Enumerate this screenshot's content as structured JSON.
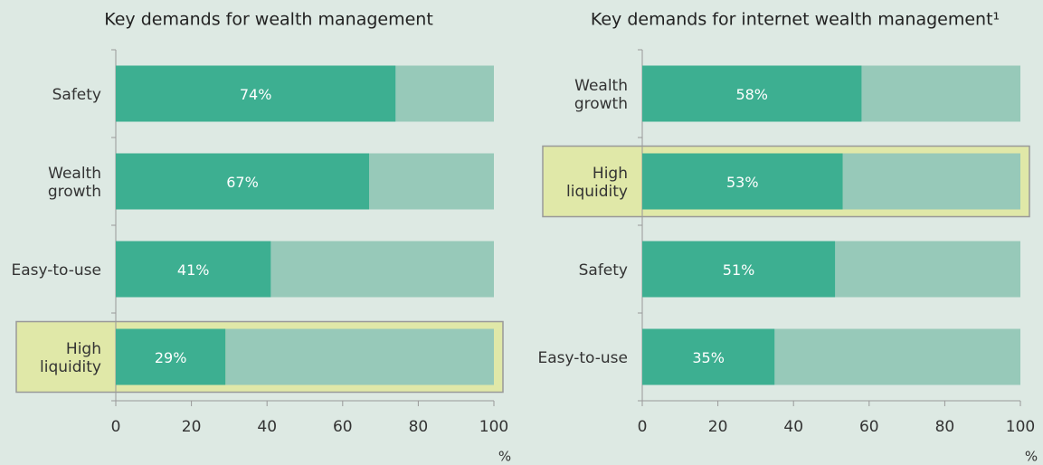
{
  "chart_data": [
    {
      "type": "bar",
      "orientation": "horizontal",
      "title": "Key demands for wealth management",
      "categories": [
        "Safety",
        "Wealth growth",
        "Easy-to-use",
        "High liquidity"
      ],
      "values": [
        74,
        67,
        41,
        29
      ],
      "value_labels": [
        "74%",
        "67%",
        "41%",
        "29%"
      ],
      "color": "#3daf91",
      "track_color": "#97c9b9",
      "highlight": 3,
      "highlight_color": "#e0e8a8",
      "xlim": [
        0,
        100
      ],
      "xticks": [
        0,
        20,
        40,
        60,
        80,
        100
      ],
      "xlabel": "%"
    },
    {
      "type": "bar",
      "orientation": "horizontal",
      "title": "Key demands for internet wealth management¹",
      "categories": [
        "Wealth growth",
        "High liquidity",
        "Safety",
        "Easy-to-use"
      ],
      "values": [
        58,
        53,
        51,
        35
      ],
      "value_labels": [
        "58%",
        "53%",
        "51%",
        "35%"
      ],
      "color": "#3daf91",
      "track_color": "#97c9b9",
      "highlight": 1,
      "highlight_color": "#e0e8a8",
      "xlim": [
        0,
        100
      ],
      "xticks": [
        0,
        20,
        40,
        60,
        80,
        100
      ],
      "xlabel": "%"
    }
  ]
}
